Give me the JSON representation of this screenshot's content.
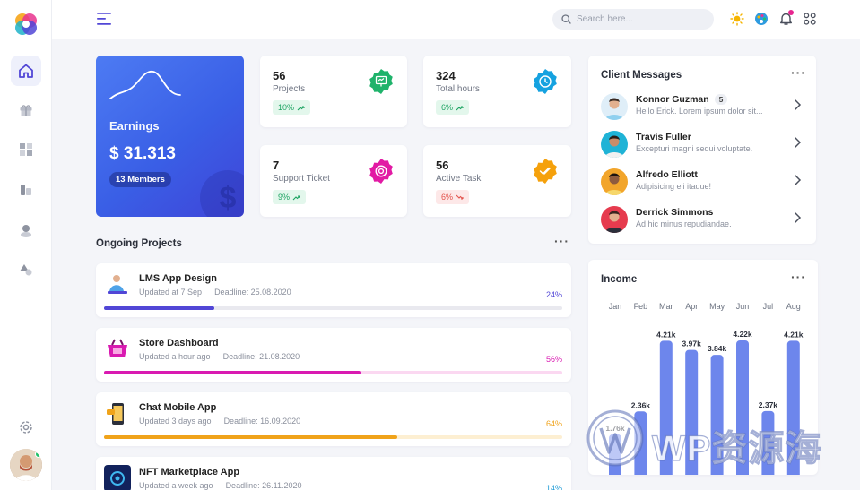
{
  "topbar": {
    "search_placeholder": "Search here..."
  },
  "earnings": {
    "label": "Earnings",
    "amount": "$ 31.313",
    "members": "13 Members"
  },
  "stats": [
    {
      "value": "56",
      "label": "Projects",
      "change": "10%",
      "trend": "up",
      "color": "#1fb36b"
    },
    {
      "value": "324",
      "label": "Total hours",
      "change": "6%",
      "trend": "up",
      "color": "#15a2e0"
    },
    {
      "value": "7",
      "label": "Support Ticket",
      "change": "9%",
      "trend": "up",
      "color": "#e21aa4"
    },
    {
      "value": "56",
      "label": "Active Task",
      "change": "6%",
      "trend": "down",
      "color": "#f5a10c"
    }
  ],
  "ongoing": {
    "title": "Ongoing Projects",
    "projects": [
      {
        "name": "LMS App Design",
        "updated": "Updated at 7 Sep",
        "deadline": "Deadline: 25.08.2020",
        "percent": "24%",
        "progress": 0.24,
        "color": "#5146d6",
        "track": "#e9e9ef"
      },
      {
        "name": "Store Dashboard",
        "updated": "Updated a hour ago",
        "deadline": "Deadline: 21.08.2020",
        "percent": "56%",
        "progress": 0.56,
        "color": "#d91ab1",
        "track": "#fbd8f1"
      },
      {
        "name": "Chat Mobile App",
        "updated": "Updated 3 days ago",
        "deadline": "Deadline: 16.09.2020",
        "percent": "64%",
        "progress": 0.64,
        "color": "#f0a31a",
        "track": "#fdefd2"
      },
      {
        "name": "NFT Marketplace App",
        "updated": "Updated a week ago",
        "deadline": "Deadline: 26.11.2020",
        "percent": "14%",
        "progress": 0.14,
        "color": "#1c9ad6",
        "track": "#d9eef9"
      }
    ]
  },
  "messages": {
    "title": "Client Messages",
    "items": [
      {
        "name": "Konnor Guzman",
        "count": "5",
        "text": "Hello Erick. Lorem ipsum dolor sit..."
      },
      {
        "name": "Travis Fuller",
        "count": "",
        "text": "Excepturi magni sequi voluptate."
      },
      {
        "name": "Alfredo Elliott",
        "count": "",
        "text": "Adipisicing eli itaque!"
      },
      {
        "name": "Derrick Simmons",
        "count": "",
        "text": "Ad hic minus repudiandae."
      }
    ]
  },
  "income": {
    "title": "Income",
    "months": [
      "Jan",
      "Feb",
      "Mar",
      "Apr",
      "May",
      "Jun",
      "Jul",
      "Aug"
    ],
    "labels": [
      "1.76k",
      "2.36k",
      "4.21k",
      "3.97k",
      "3.84k",
      "4.22k",
      "2.37k",
      "4.21k"
    ]
  },
  "chart_data": {
    "type": "bar",
    "title": "Income",
    "categories": [
      "Jan",
      "Feb",
      "Mar",
      "Apr",
      "May",
      "Jun",
      "Jul",
      "Aug"
    ],
    "values": [
      1.76,
      2.36,
      4.21,
      3.97,
      3.84,
      4.22,
      2.37,
      4.21
    ],
    "xlabel": "",
    "ylabel": "",
    "ylim": [
      0,
      4.5
    ],
    "grid": false,
    "bar_color": "#6d86ec"
  },
  "watermark": {
    "text": "WP资源海"
  },
  "colors": {
    "accent": "#5146d6",
    "earnings_start": "#4d7bf3",
    "earnings_end": "#3f44d8"
  }
}
